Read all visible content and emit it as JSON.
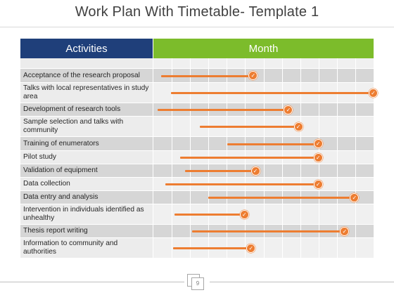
{
  "title": "Work Plan With Timetable- Template 1",
  "headers": {
    "activities": "Activities",
    "month": "Month"
  },
  "page_number": "9",
  "colors": {
    "activities_header": "#1f3f7a",
    "month_header": "#7cbc2b",
    "bar": "#ed7d31"
  },
  "month_columns": 12,
  "rows": [
    {
      "label": "",
      "start": null,
      "end": null
    },
    {
      "label": "Acceptance of the research proposal",
      "start": 0.07,
      "end": 0.91
    },
    {
      "label": "Talks with local representatives in study area",
      "start": 0.16,
      "end": 2.0
    },
    {
      "label": "Development of research tools",
      "start": 0.04,
      "end": 1.23
    },
    {
      "label": "Sample selection and talks with community",
      "start": 0.42,
      "end": 1.32
    },
    {
      "label": "Training of enumerators",
      "start": 0.67,
      "end": 1.5
    },
    {
      "label": "Pilot study",
      "start": 0.24,
      "end": 1.5
    },
    {
      "label": "Validation of equipment",
      "start": 0.29,
      "end": 0.93
    },
    {
      "label": "Data collection",
      "start": 0.11,
      "end": 1.5
    },
    {
      "label": "Data entry and analysis",
      "start": 0.5,
      "end": 1.83
    },
    {
      "label": "Intervention in individuals identified as unhealthy",
      "start": 0.19,
      "end": 0.83
    },
    {
      "label": "Thesis report writing",
      "start": 0.35,
      "end": 1.74
    },
    {
      "label": "Information to community and authorities",
      "start": 0.18,
      "end": 0.89
    }
  ]
}
